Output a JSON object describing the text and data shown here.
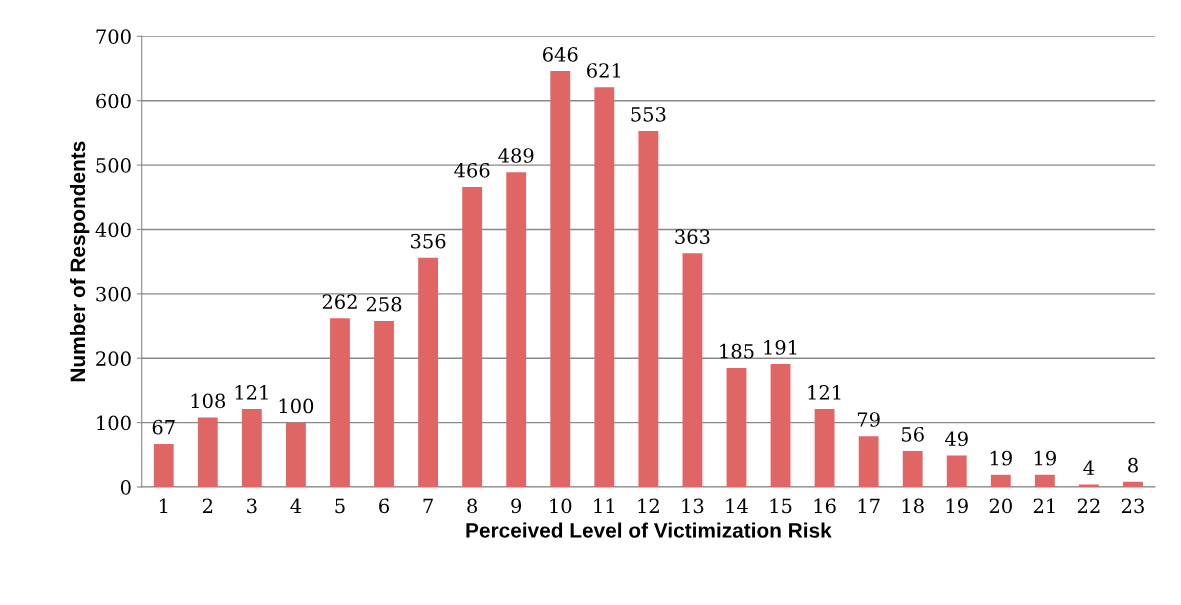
{
  "chart_data": {
    "type": "bar",
    "xlabel": "Perceived Level of Victimization Risk",
    "ylabel": "Number of Respondents",
    "categories": [
      "1",
      "2",
      "3",
      "4",
      "5",
      "6",
      "7",
      "8",
      "9",
      "10",
      "11",
      "12",
      "13",
      "14",
      "15",
      "16",
      "17",
      "18",
      "19",
      "20",
      "21",
      "22",
      "23"
    ],
    "values": [
      67,
      108,
      121,
      100,
      262,
      258,
      356,
      466,
      489,
      646,
      621,
      553,
      363,
      185,
      191,
      121,
      79,
      56,
      49,
      19,
      19,
      4,
      8
    ],
    "color": "#e06666",
    "ylim": [
      0,
      700
    ],
    "yticks": [
      0,
      100,
      200,
      300,
      400,
      500,
      600,
      700
    ],
    "grid": "y",
    "data_labels": true
  }
}
